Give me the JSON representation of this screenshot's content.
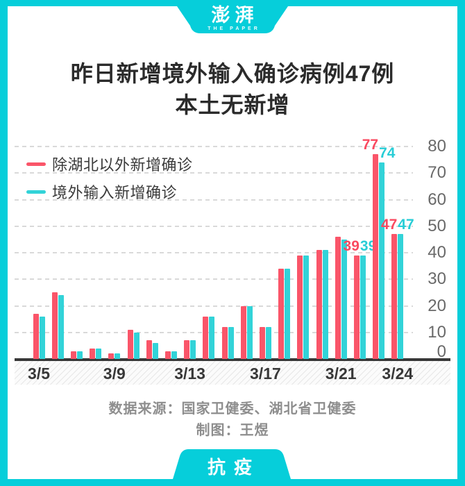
{
  "frame": {
    "color": "#06ceda",
    "logo_text": "澎湃",
    "logo_subtext": "THE PAPER",
    "badge_text": "抗疫"
  },
  "title": {
    "line1": "昨日新增境外输入确诊病例47例",
    "line2": "本土无新增"
  },
  "chart_data": {
    "type": "bar",
    "title": "昨日新增境外输入确诊病例47例 本土无新增",
    "xlabel": "",
    "ylabel": "",
    "categories": [
      "3/5",
      "3/6",
      "3/7",
      "3/8",
      "3/9",
      "3/10",
      "3/11",
      "3/12",
      "3/13",
      "3/14",
      "3/15",
      "3/16",
      "3/17",
      "3/18",
      "3/19",
      "3/20",
      "3/21",
      "3/22",
      "3/23",
      "3/24"
    ],
    "series": [
      {
        "name": "除湖北以外新增确诊",
        "color": "#fa5569",
        "label_color": "#fa4a60",
        "values": [
          17,
          25,
          3,
          4,
          2,
          11,
          7,
          3,
          7,
          16,
          12,
          20,
          12,
          34,
          39,
          41,
          46,
          39,
          77,
          47
        ]
      },
      {
        "name": "境外输入新增确诊",
        "color": "#32d3d8",
        "label_color": "#28cdd6",
        "values": [
          16,
          24,
          3,
          4,
          2,
          10,
          6,
          3,
          7,
          16,
          12,
          20,
          12,
          34,
          39,
          41,
          45,
          39,
          74,
          47
        ]
      }
    ],
    "labeled_indices": [
      17,
      18,
      19
    ],
    "x_tick_indices": [
      0,
      4,
      8,
      12,
      16,
      19
    ],
    "x_tick_labels": [
      "3/5",
      "3/9",
      "3/13",
      "3/17",
      "3/21",
      "3/24"
    ],
    "ylim": [
      0,
      80
    ],
    "ytick_step": 10,
    "y_axis_side": "right",
    "grid": "dashed-horizontal",
    "legend_position": "top-left"
  },
  "footer": {
    "source": "数据来源：国家卫健委、湖北省卫健委",
    "credit": "制图：王煜"
  }
}
